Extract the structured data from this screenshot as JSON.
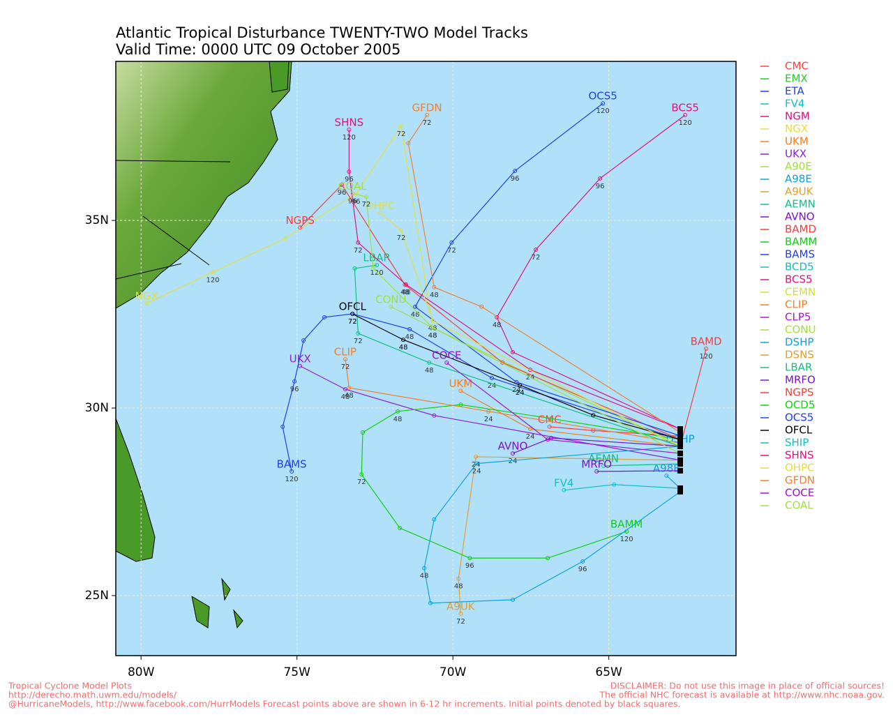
{
  "chart_data": {
    "type": "track-map",
    "title": "Atlantic Tropical Disturbance TWENTY-TWO Model Tracks",
    "subtitle": "Valid Time: 0000 UTC 09 October 2005",
    "xlim": [
      -80.81,
      -60.92
    ],
    "ylim": [
      23.4,
      39.24
    ],
    "xticks": [
      {
        "value": -80,
        "label": "80W"
      },
      {
        "value": -75,
        "label": "75W"
      },
      {
        "value": -70,
        "label": "70W"
      },
      {
        "value": -65,
        "label": "65W"
      }
    ],
    "yticks": [
      {
        "value": 25,
        "label": "25N"
      },
      {
        "value": 30,
        "label": "30N"
      },
      {
        "value": 35,
        "label": "35N"
      }
    ],
    "grid": true,
    "footer_left": [
      "Tropical Cyclone Model Plots",
      "http://derecho.math.uwm.edu/models/",
      "@HurricaneModels, http://www.facebook.com/HurrModels  Forecast points above are shown in 6-12 hr increments. Initial points denoted by black squares."
    ],
    "footer_right": [
      "DISCLAIMER: Do not use this image in place of official sources!",
      "The official NHC forecast is available at http://www.nhc.noaa.gov."
    ],
    "series": [
      {
        "name": "CMC",
        "color": "#ff4040",
        "lon": [
          -62.71,
          -65.5,
          -66.9
        ],
        "lat": [
          29.25,
          29.4,
          29.5
        ],
        "taus": [
          null,
          null,
          null
        ]
      },
      {
        "name": "EMX",
        "color": "#20d020"
      },
      {
        "name": "ETA",
        "color": "#2040e0"
      },
      {
        "name": "FV4",
        "color": "#10c0c0",
        "lon": [
          -62.71,
          -64.83,
          -66.44
        ],
        "lat": [
          27.86,
          27.96,
          27.81
        ],
        "taus": [
          null,
          null,
          null
        ]
      },
      {
        "name": "NGM",
        "color": "#e0107a"
      },
      {
        "name": "NGX",
        "color": "#e0e040",
        "lon": [
          -62.71,
          -70.65,
          -71.66,
          -73.11,
          -75.39,
          -77.7,
          -79.82
        ],
        "lat": [
          28.98,
          32.14,
          37.51,
          35.71,
          34.52,
          33.62,
          32.79
        ],
        "taus": [
          null,
          null,
          72,
          96,
          null,
          120,
          null
        ]
      },
      {
        "name": "UKM",
        "color": "#f08020",
        "lon": [
          -62.71,
          -67.52,
          -69.75
        ],
        "lat": [
          28.98,
          29.44,
          30.46
        ],
        "taus": [
          null,
          24,
          null
        ]
      },
      {
        "name": "UKX",
        "color": "#9020d0",
        "lon": [
          -62.71,
          -70.6,
          -73.45,
          -74.9
        ],
        "lat": [
          28.61,
          29.8,
          30.5,
          31.12
        ],
        "taus": [
          null,
          null,
          48,
          null
        ]
      },
      {
        "name": "A90E",
        "color": "#a0e040"
      },
      {
        "name": "A98E",
        "color": "#10a0e0",
        "lon": [
          -62.71,
          -63.15
        ],
        "lat": [
          27.86,
          28.2
        ],
        "taus": [
          null,
          null
        ]
      },
      {
        "name": "A9UK",
        "color": "#e0a030",
        "lon": [
          -62.71,
          -69.26,
          -69.82,
          -69.75
        ],
        "lat": [
          28.61,
          28.7,
          25.45,
          24.52
        ],
        "taus": [
          null,
          24,
          48,
          72
        ]
      },
      {
        "name": "AEMN",
        "color": "#10c080",
        "lon": [
          -62.71,
          -65.17
        ],
        "lat": [
          28.51,
          28.46
        ],
        "taus": [
          null,
          null
        ]
      },
      {
        "name": "AVNO",
        "color": "#8010d0",
        "lon": [
          -62.71,
          -66.85,
          -68.08
        ],
        "lat": [
          28.98,
          29.2,
          28.79
        ],
        "taus": [
          null,
          null,
          24
        ]
      },
      {
        "name": "BAMD",
        "color": "#f04040",
        "lon": [
          -62.71,
          -61.88
        ],
        "lat": [
          28.98,
          31.58
        ],
        "taus": [
          null,
          120
        ]
      },
      {
        "name": "BAMM",
        "color": "#10d010",
        "lon": [
          -62.71,
          -66.85,
          -69.75,
          -71.77,
          -72.89,
          -72.93,
          -71.7,
          -69.46,
          -66.96,
          -64.43
        ],
        "lat": [
          29.16,
          29.72,
          30.09,
          29.91,
          29.35,
          28.23,
          26.8,
          26.0,
          26.0,
          26.71
        ],
        "taus": [
          null,
          null,
          null,
          48,
          null,
          72,
          null,
          96,
          null,
          120
        ]
      },
      {
        "name": "BAMS",
        "color": "#2040f0",
        "lon": [
          -62.71,
          -68.75,
          -71.39,
          -73.22,
          -74.12,
          -74.79,
          -75.08,
          -75.46,
          -75.17
        ],
        "lat": [
          29.16,
          30.8,
          32.1,
          32.51,
          32.42,
          31.8,
          30.71,
          29.5,
          28.31
        ],
        "taus": [
          null,
          24,
          48,
          72,
          null,
          null,
          96,
          null,
          120
        ]
      },
      {
        "name": "BCD5",
        "color": "#10c0c0"
      },
      {
        "name": "BCS5",
        "color": "#e01080",
        "lon": [
          -62.71,
          -68.08,
          -68.59,
          -67.34,
          -65.28,
          -62.55
        ],
        "lat": [
          29.44,
          31.49,
          32.42,
          34.22,
          36.12,
          37.81
        ],
        "taus": [
          null,
          null,
          48,
          72,
          96,
          120
        ]
      },
      {
        "name": "CEMN",
        "color": "#d0e040"
      },
      {
        "name": "CLIP",
        "color": "#f08030",
        "lon": [
          -62.71,
          -68.86,
          -73.33,
          -73.45
        ],
        "lat": [
          29.07,
          29.91,
          30.54,
          31.3
        ],
        "taus": [
          null,
          24,
          48,
          72
        ]
      },
      {
        "name": "CLP5",
        "color": "#b010e0"
      },
      {
        "name": "CONU",
        "color": "#a0e040",
        "lon": [
          -62.71,
          -70.65,
          -71.99
        ],
        "lat": [
          28.98,
          32.14,
          32.7
        ],
        "taus": [
          null,
          48,
          null
        ]
      },
      {
        "name": "DSHP",
        "color": "#10a0e0",
        "lon": [
          -62.71,
          -65.84,
          -68.08,
          -70.72,
          -70.92,
          -70.6,
          -69.24,
          -62.71
        ],
        "lat": [
          27.77,
          25.91,
          24.89,
          24.8,
          25.73,
          27.03,
          28.52,
          28.98
        ],
        "taus": [
          null,
          96,
          null,
          null,
          48,
          null,
          24,
          null
        ]
      },
      {
        "name": "DSNS",
        "color": "#e0a030"
      },
      {
        "name": "LBAR",
        "color": "#10c080",
        "lon": [
          -62.71,
          -70.76,
          -73.04,
          -73.15,
          -72.44
        ],
        "lat": [
          28.98,
          31.21,
          31.99,
          33.72,
          33.81
        ],
        "taus": [
          null,
          48,
          72,
          null,
          120
        ]
      },
      {
        "name": "MRFO",
        "color": "#8010d0",
        "lon": [
          -62.71,
          -65.39
        ],
        "lat": [
          28.33,
          28.31
        ],
        "taus": [
          null,
          null
        ]
      },
      {
        "name": "NGPS",
        "color": "#f04040",
        "lon": [
          -62.71,
          -68.41,
          -71.54,
          -73.56,
          -74.9
        ],
        "lat": [
          29.16,
          31.21,
          33.29,
          35.95,
          34.81
        ],
        "taus": [
          null,
          null,
          48,
          96,
          null
        ]
      },
      {
        "name": "OCD5",
        "color": "#10d010"
      },
      {
        "name": "OCS5",
        "color": "#2040f0",
        "lon": [
          -62.71,
          -67.96,
          -71.21,
          -70.04,
          -68.01,
          -65.19
        ],
        "lat": [
          29.26,
          30.69,
          32.7,
          34.41,
          36.32,
          38.12
        ],
        "taus": [
          null,
          24,
          48,
          72,
          96,
          120
        ]
      },
      {
        "name": "OFCL",
        "color": "#000000",
        "lon": [
          -62.71,
          -65.5,
          -67.85,
          -71.59,
          -73.22
        ],
        "lat": [
          29.16,
          29.81,
          30.61,
          31.82,
          32.51
        ],
        "taus": [
          null,
          null,
          24,
          48,
          72
        ]
      },
      {
        "name": "SHIP",
        "color": "#10c0c0"
      },
      {
        "name": "SHNS",
        "color": "#e01080",
        "lon": [
          -62.71,
          -67.52,
          -71.5,
          -73.04,
          -73.33,
          -73.33
        ],
        "lat": [
          29.44,
          31.02,
          33.29,
          34.41,
          36.3,
          37.42
        ],
        "taus": [
          null,
          24,
          48,
          72,
          96,
          120
        ]
      },
      {
        "name": "OHPC",
        "color": "#e0e040",
        "lon": [
          -62.71,
          -70.65,
          -71.66,
          -72.33
        ],
        "lat": [
          28.98,
          32.33,
          34.74,
          35.2
        ],
        "taus": [
          null,
          48,
          72,
          null
        ]
      },
      {
        "name": "GFDN",
        "color": "#f08030",
        "lon": [
          -62.71,
          -69.08,
          -70.6,
          -71.43,
          -70.83
        ],
        "lat": [
          29.35,
          32.7,
          33.22,
          37.06,
          37.81
        ],
        "taus": [
          null,
          null,
          48,
          null,
          72
        ]
      },
      {
        "name": "COCE",
        "color": "#a010d0",
        "lon": [
          -62.71,
          -66.96,
          -70.2
        ],
        "lat": [
          28.79,
          29.16,
          31.21
        ],
        "taus": [
          null,
          null,
          null
        ]
      },
      {
        "name": "COAL",
        "color": "#a0e040",
        "lon": [
          -62.71,
          -70.65,
          -72.55,
          -72.78,
          -73.22
        ],
        "lat": [
          28.79,
          32.14,
          33.72,
          35.63,
          35.72
        ],
        "taus": [
          null,
          48,
          null,
          72,
          96
        ]
      }
    ]
  }
}
